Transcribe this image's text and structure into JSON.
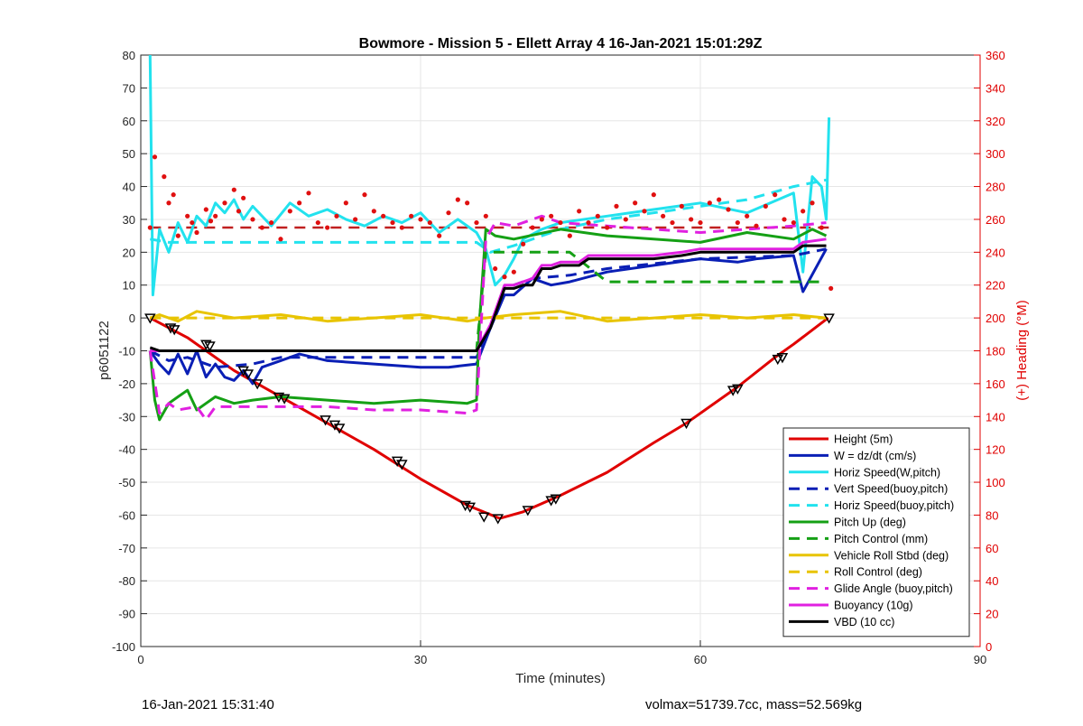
{
  "footer": {
    "left": "16-Jan-2021 15:31:40",
    "right": "volmax=51739.7cc, mass=52.569kg"
  },
  "chart_data": {
    "type": "line",
    "title": "Bowmore - Mission 5 - Ellett Array 4 16-Jan-2021 15:01:29Z",
    "xlabel": "Time (minutes)",
    "ylabel": "p6051122",
    "y2label": "(+) Heading (°M)",
    "xlim": [
      0,
      90
    ],
    "ylim": [
      -100,
      80
    ],
    "y2lim": [
      0,
      360
    ],
    "xticks": [
      0,
      30,
      60,
      90
    ],
    "yticks": [
      -100,
      -90,
      -80,
      -70,
      -60,
      -50,
      -40,
      -30,
      -20,
      -10,
      0,
      10,
      20,
      30,
      40,
      50,
      60,
      70,
      80
    ],
    "y2ticks": [
      0,
      20,
      40,
      60,
      80,
      100,
      120,
      140,
      160,
      180,
      200,
      220,
      240,
      260,
      280,
      300,
      320,
      340,
      360
    ],
    "grid": true,
    "legend_position": "bottom-right",
    "series": [
      {
        "name": "Height (5m)",
        "color": "#e00000",
        "style": "solid",
        "x": [
          1,
          5,
          10,
          15,
          20,
          25,
          30,
          35,
          38.5,
          41,
          45,
          50,
          55,
          58.5,
          64,
          68,
          70,
          73.7
        ],
        "y": [
          0,
          -6,
          -16,
          -24,
          -32,
          -40,
          -49,
          -57,
          -61,
          -59,
          -54,
          -47,
          -38,
          -32,
          -21,
          -12,
          -8,
          0
        ]
      },
      {
        "name": "W = dz/dt (cm/s)",
        "color": "#0a1fb5",
        "style": "solid",
        "x": [
          1,
          2,
          3,
          4,
          5,
          6,
          7,
          8,
          9,
          10,
          11,
          12,
          13,
          15,
          17,
          20,
          25,
          30,
          33,
          36,
          37.5,
          39,
          40,
          42,
          44,
          46,
          50,
          55,
          60,
          64,
          66,
          70,
          71,
          73.5
        ],
        "y": [
          -10,
          -14,
          -17,
          -11,
          -17,
          -10,
          -18,
          -14,
          -18,
          -19,
          -16,
          -20,
          -15,
          -13,
          -11,
          -13,
          -14,
          -15,
          -15,
          -14,
          -3,
          7,
          7,
          12,
          10,
          11,
          14,
          16,
          18,
          17,
          18,
          19,
          8,
          21
        ]
      },
      {
        "name": "Horiz Speed(W,pitch)",
        "color": "#22e2ee",
        "style": "solid",
        "x": [
          1,
          1.3,
          2,
          3,
          4,
          5,
          6,
          7,
          8,
          9,
          10,
          11,
          12,
          14,
          16,
          18,
          20,
          22,
          24,
          26,
          28,
          30,
          32,
          34,
          36,
          37,
          38,
          39,
          40,
          41,
          43,
          45,
          50,
          55,
          60,
          65,
          70,
          71,
          72,
          73,
          73.5,
          73.8
        ],
        "y": [
          80,
          7,
          27,
          20,
          29,
          23,
          31,
          28,
          35,
          32,
          36,
          30,
          34,
          28,
          35,
          31,
          33,
          30,
          28,
          31,
          29,
          32,
          26,
          30,
          26,
          21,
          10,
          13,
          18,
          24,
          27,
          29,
          31,
          33,
          35,
          32,
          38,
          14,
          43,
          40,
          30,
          61
        ]
      },
      {
        "name": "Vert Speed(buoy,pitch)",
        "color": "#0a1fb5",
        "style": "dash",
        "x": [
          1,
          3,
          5,
          8,
          12,
          15,
          20,
          30,
          36,
          37.5,
          39,
          42,
          46,
          50,
          60,
          70,
          73.5
        ],
        "y": [
          -10,
          -13,
          -12,
          -15,
          -14,
          -12,
          -12,
          -12,
          -12,
          -3,
          9,
          12,
          13,
          15,
          18,
          19,
          21
        ]
      },
      {
        "name": "Horiz Speed(buoy,pitch)",
        "color": "#22e2ee",
        "style": "dash",
        "x": [
          1,
          3,
          10,
          20,
          30,
          36,
          37.5,
          40,
          45,
          50,
          55,
          60,
          65,
          70,
          73.5
        ],
        "y": [
          24,
          23,
          23,
          23,
          23,
          23,
          20,
          22,
          27,
          30,
          32,
          34,
          36,
          40,
          42
        ]
      },
      {
        "name": "Pitch Up (deg)",
        "color": "#15a015",
        "style": "solid",
        "x": [
          1,
          1.5,
          2,
          3,
          4,
          5,
          6,
          7,
          8,
          10,
          12,
          15,
          20,
          25,
          30,
          35,
          36,
          36.3,
          37,
          38,
          40,
          45,
          50,
          55,
          60,
          65,
          70,
          72,
          73.5
        ],
        "y": [
          -10,
          -25,
          -31,
          -26,
          -24,
          -22,
          -28,
          -26,
          -24,
          -26,
          -25,
          -24,
          -25,
          -26,
          -25,
          -26,
          -25,
          -2,
          27,
          25,
          24,
          27,
          25,
          24,
          23,
          26,
          24,
          27,
          25
        ]
      },
      {
        "name": "Pitch Control (mm)",
        "color": "#15a015",
        "style": "dash",
        "x": [
          1,
          36,
          37,
          46,
          50,
          60,
          70,
          73.5
        ],
        "y": [
          -10,
          -10,
          20,
          20,
          11,
          11,
          11,
          11
        ]
      },
      {
        "name": "Vehicle Roll Stbd (deg)",
        "color": "#e8c400",
        "style": "solid",
        "x": [
          1,
          2,
          4,
          6,
          10,
          15,
          20,
          25,
          30,
          35,
          37,
          40,
          45,
          50,
          55,
          60,
          65,
          70,
          73.5
        ],
        "y": [
          0,
          1,
          -1,
          2,
          0,
          1,
          -1,
          0,
          1,
          -1,
          0,
          1,
          2,
          -1,
          0,
          1,
          0,
          1,
          0
        ]
      },
      {
        "name": "Roll Control (deg)",
        "color": "#e8c400",
        "style": "dash",
        "x": [
          1,
          10,
          20,
          30,
          37,
          40,
          50,
          58,
          60,
          68,
          70,
          73.5
        ],
        "y": [
          0,
          0,
          0,
          0,
          0,
          0,
          0,
          0,
          0,
          0,
          0,
          0
        ]
      },
      {
        "name": "Glide Angle (buoy,pitch)",
        "color": "#e020e0",
        "style": "dash",
        "x": [
          1,
          2,
          3,
          4,
          6,
          7,
          8,
          10,
          15,
          20,
          25,
          30,
          35,
          36,
          37,
          38,
          40,
          43,
          45,
          50,
          55,
          60,
          65,
          70,
          73.5
        ],
        "y": [
          -10,
          -29,
          -26,
          -28,
          -27,
          -31,
          -27,
          -27,
          -27,
          -27,
          -28,
          -28,
          -29,
          -28,
          24,
          29,
          28,
          31,
          29,
          28,
          27,
          26,
          27,
          28,
          29
        ]
      },
      {
        "name": "Buoyancy (10g)",
        "color": "#e020e0",
        "style": "solid",
        "x": [
          1,
          2,
          36,
          37.5,
          39,
          40,
          41,
          42,
          43,
          44,
          45,
          47,
          48,
          55,
          58,
          60,
          65,
          70,
          71,
          73.5
        ],
        "y": [
          -10,
          -10,
          -10,
          -2,
          10,
          10,
          11,
          12,
          16,
          16,
          17,
          17,
          19,
          19,
          20,
          21,
          21,
          21,
          23,
          24
        ]
      },
      {
        "name": "VBD (10 cc)",
        "color": "#000000",
        "style": "solid",
        "x": [
          1,
          2,
          36,
          37.5,
          39,
          40,
          41,
          42,
          43,
          44,
          45,
          47,
          48,
          55,
          58,
          60,
          65,
          70,
          71,
          73.5
        ],
        "y": [
          -9,
          -10,
          -10,
          -3,
          9,
          9,
          10,
          10,
          15,
          15,
          16,
          16,
          18,
          18,
          19,
          20,
          20,
          20,
          22,
          22
        ]
      }
    ],
    "heading_reference": {
      "y2": 255,
      "color": "#c02020",
      "style": "dash"
    },
    "heading_points": {
      "color": "#e01010",
      "x": [
        1,
        1.5,
        2.5,
        3,
        3.5,
        4,
        5,
        5.5,
        6,
        7,
        7.5,
        8,
        9,
        10,
        10.5,
        11,
        12,
        13,
        14,
        15,
        16,
        17,
        18,
        19,
        20,
        21,
        22,
        23,
        24,
        25,
        26,
        27,
        28,
        29,
        30,
        31,
        32,
        33,
        34,
        35,
        36,
        37,
        38,
        39,
        40,
        41,
        42,
        43,
        44,
        45,
        46,
        47,
        48,
        49,
        50,
        51,
        52,
        53,
        54,
        55,
        56,
        57,
        58,
        59,
        60,
        61,
        62,
        63,
        64,
        65,
        66,
        67,
        68,
        69,
        70,
        71,
        72,
        73,
        74
      ],
      "y2": [
        255,
        298,
        286,
        270,
        275,
        250,
        262,
        258,
        252,
        266,
        259,
        262,
        270,
        278,
        265,
        273,
        260,
        255,
        258,
        248,
        265,
        270,
        276,
        258,
        255,
        262,
        270,
        260,
        275,
        265,
        262,
        258,
        255,
        262,
        260,
        258,
        250,
        264,
        272,
        270,
        258,
        262,
        230,
        225,
        228,
        245,
        255,
        260,
        262,
        258,
        250,
        265,
        258,
        262,
        255,
        268,
        260,
        270,
        265,
        275,
        262,
        258,
        268,
        260,
        258,
        270,
        272,
        266,
        258,
        262,
        256,
        268,
        275,
        260,
        258,
        265,
        270,
        255,
        218
      ]
    },
    "markers": {
      "x": [
        1,
        3.2,
        3.6,
        7,
        7.4,
        11,
        11.5,
        12.5,
        14.8,
        15.4,
        19.8,
        20.8,
        21.3,
        27.5,
        28,
        34.8,
        35.3,
        36.8,
        38.3,
        41.5,
        44,
        44.5,
        58.5,
        63.5,
        64,
        68.3,
        68.8,
        73.8
      ],
      "y": [
        0,
        -3,
        -3.5,
        -8,
        -8.5,
        -16,
        -17,
        -20,
        -24,
        -24.5,
        -31,
        -32.5,
        -33.5,
        -43.5,
        -44.5,
        -57,
        -57.5,
        -60.5,
        -61,
        -58.5,
        -55.5,
        -55,
        -32,
        -22,
        -21.5,
        -12.5,
        -12,
        0
      ]
    }
  }
}
